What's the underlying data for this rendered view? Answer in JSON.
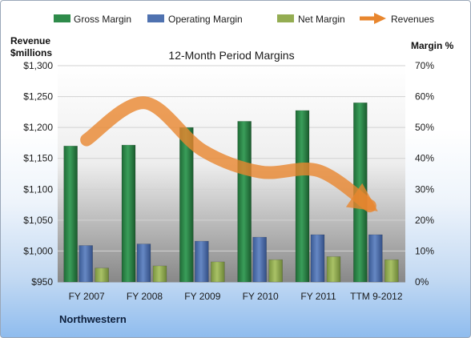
{
  "chart_data": {
    "type": "bar",
    "title": "12-Month Period Margins",
    "categories": [
      "FY 2007",
      "FY 2008",
      "FY 2009",
      "FY 2010",
      "FY 2011",
      "TTM 9-2012"
    ],
    "series": [
      {
        "name": "Gross Margin",
        "axis": "right",
        "color": "#2e8b4a",
        "values": [
          44,
          44.3,
          50,
          52,
          55.5,
          58
        ]
      },
      {
        "name": "Operating Margin",
        "axis": "right",
        "color": "#4f72b0",
        "values": [
          11.8,
          12.3,
          13.2,
          14.5,
          15.3,
          15.3
        ]
      },
      {
        "name": "Net Margin",
        "axis": "right",
        "color": "#94ad52",
        "values": [
          4.5,
          5.2,
          6.5,
          7.2,
          8.2,
          7.2
        ]
      },
      {
        "name": "Revenues",
        "axis": "left",
        "type": "line",
        "color": "#e8862e",
        "values": [
          1180,
          1240,
          1163,
          1128,
          1130,
          1073
        ]
      }
    ],
    "left_axis": {
      "label_line1": "Revenue",
      "label_line2": "$millions",
      "min": 950,
      "max": 1300,
      "step": 50,
      "ticks": [
        "$950",
        "$1,000",
        "$1,050",
        "$1,100",
        "$1,150",
        "$1,200",
        "$1,250",
        "$1,300"
      ]
    },
    "right_axis": {
      "label": "Margin %",
      "min": 0,
      "max": 70,
      "step": 10,
      "ticks": [
        "0%",
        "10%",
        "20%",
        "30%",
        "40%",
        "50%",
        "60%",
        "70%"
      ]
    },
    "company": "Northwestern",
    "grid": true,
    "legend_position": "top"
  }
}
